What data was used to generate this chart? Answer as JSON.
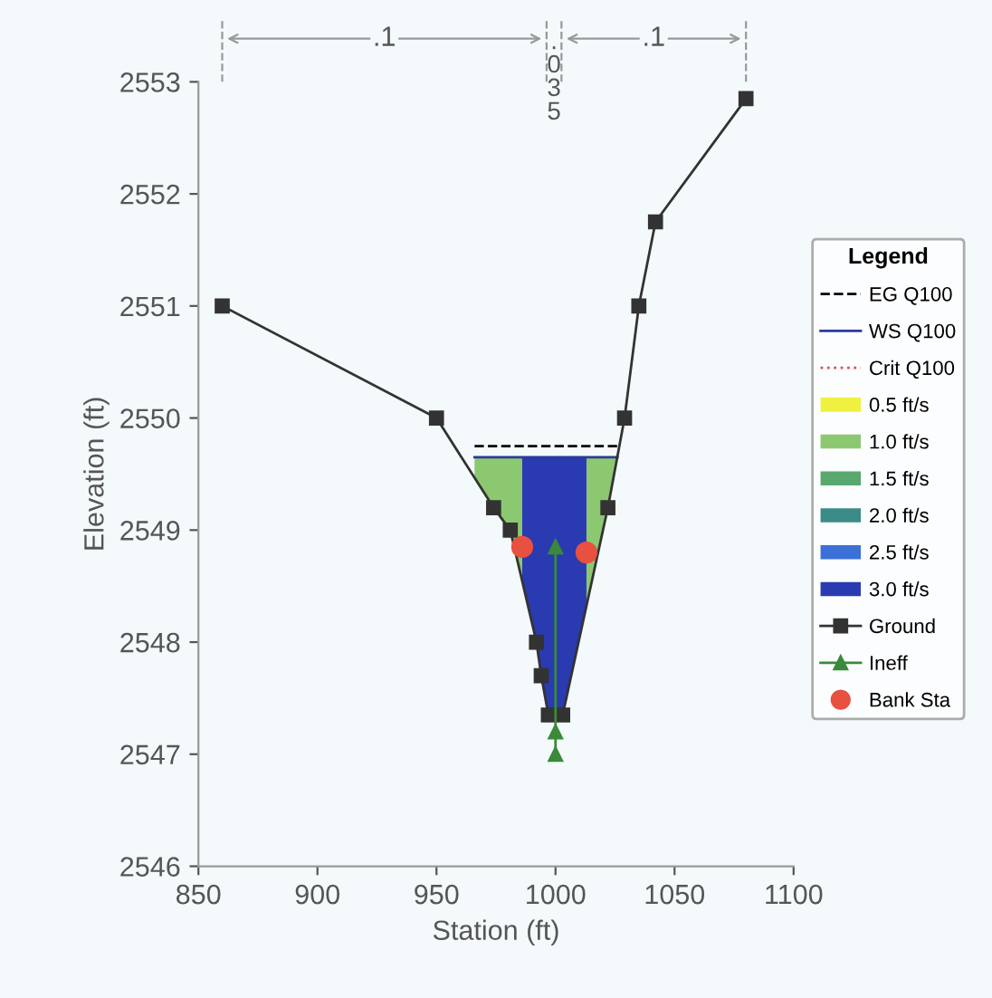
{
  "chart_data": {
    "type": "line",
    "xlabel": "Station (ft)",
    "ylabel": "Elevation (ft)",
    "legend_title": "Legend",
    "legend": "right",
    "xlim": [
      850,
      1100
    ],
    "xticks": [
      850,
      900,
      950,
      1000,
      1050,
      1100
    ],
    "ylim": [
      2546,
      2553
    ],
    "yticks": [
      2546,
      2547,
      2548,
      2549,
      2550,
      2551,
      2552,
      2553
    ],
    "grid": false,
    "series": [
      {
        "name": "EG Q100",
        "color": "#000000",
        "line_style": "dashed",
        "marker": "none",
        "x": [
          966,
          1026
        ],
        "values": [
          2549.75,
          2549.75
        ]
      },
      {
        "name": "WS Q100",
        "color": "#2a3a9a",
        "line_style": "solid",
        "marker": "none",
        "x": [
          966,
          1026
        ],
        "values": [
          2549.65,
          2549.65
        ]
      },
      {
        "name": "Crit Q100",
        "color": "#e05050",
        "line_style": "dotted",
        "marker": "none"
      },
      {
        "name": "0.5 ft/s",
        "type": "area",
        "color": "#f0f040"
      },
      {
        "name": "1.0 ft/s",
        "type": "area",
        "color": "#8cc870",
        "x": [
          966,
          974,
          981,
          986
        ],
        "values": [
          2549.65,
          2549.65,
          2549.65,
          2549.65
        ]
      },
      {
        "type": "area",
        "color": "#8cc870",
        "x": [
          1013,
          1022,
          1026
        ],
        "values": [
          2549.65,
          2549.65,
          2549.65
        ]
      },
      {
        "name": "1.5 ft/s",
        "type": "area",
        "color": "#58a870"
      },
      {
        "name": "2.0 ft/s",
        "type": "area",
        "color": "#3a8a88"
      },
      {
        "name": "2.5 ft/s",
        "type": "area",
        "color": "#3a70d8"
      },
      {
        "name": "3.0 ft/s",
        "type": "area",
        "color": "#2a3ab0",
        "x": [
          986,
          992,
          994,
          997,
          1003,
          1013
        ],
        "values": [
          2549.65,
          2549.65,
          2549.65,
          2549.65,
          2549.65,
          2549.65
        ]
      },
      {
        "name": "Ground",
        "color": "#333333",
        "line_style": "solid",
        "marker": "square",
        "x": [
          860,
          950,
          974,
          981,
          992,
          994,
          997,
          1003,
          1022,
          1029,
          1035,
          1042,
          1080
        ],
        "values": [
          2551.0,
          2550.0,
          2549.2,
          2549.0,
          2548.0,
          2547.7,
          2547.35,
          2547.35,
          2549.2,
          2550.0,
          2551.0,
          2551.75,
          2552.85
        ]
      },
      {
        "name": "Ineff",
        "color": "#3a8a3a",
        "line_style": "solid",
        "marker": "triangle",
        "x": [
          1000,
          1000,
          1000
        ],
        "values": [
          2548.85,
          2547.2,
          2547.0
        ]
      },
      {
        "name": "Bank Sta",
        "type": "scatter",
        "color": "#e85040",
        "marker": "circle",
        "x": [
          986,
          1013
        ],
        "values": [
          2548.85,
          2548.8
        ]
      }
    ],
    "annotations": [
      ".1",
      ".035",
      ".1"
    ]
  }
}
